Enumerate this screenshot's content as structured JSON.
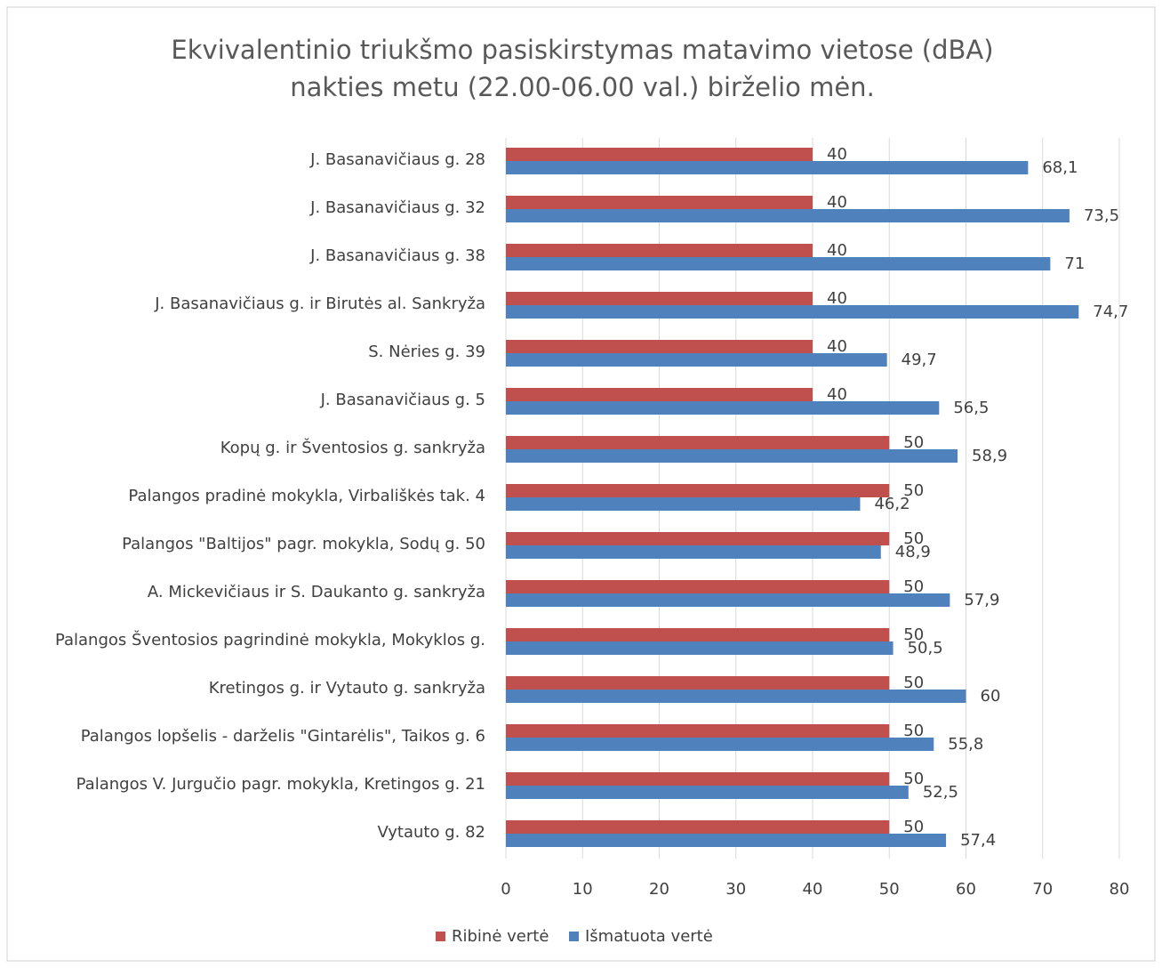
{
  "chart_data": {
    "type": "barh",
    "title": [
      "Ekvivalentinio triukšmo pasiskirstymas matavimo vietose (dBA)",
      "nakties metu (22.00-06.00 val.) birželio mėn."
    ],
    "categories": [
      "J. Basanavičiaus g. 28",
      "J. Basanavičiaus g. 32",
      "J. Basanavičiaus g. 38",
      "J. Basanavičiaus g. ir Birutės al. Sankryža",
      "S. Nėries g. 39",
      "J. Basanavičiaus g. 5",
      "Kopų g. ir Šventosios g. sankryža",
      "Palangos pradinė mokykla, Virbališkės tak. 4",
      "Palangos \"Baltijos\" pagr. mokykla, Sodų g. 50",
      "A. Mickevičiaus ir S. Daukanto g. sankryža",
      "Palangos Šventosios pagrindinė mokykla, Mokyklos g.",
      "Kretingos g. ir Vytauto g. sankryža",
      "Palangos lopšelis - darželis \"Gintarėlis\", Taikos g. 6",
      "Palangos V. Jurgučio pagr. mokykla, Kretingos g. 21",
      "Vytauto g. 82"
    ],
    "series": [
      {
        "name": "Ribinė vertė",
        "color": "#c0504d",
        "values": [
          40,
          40,
          40,
          40,
          40,
          40,
          50,
          50,
          50,
          50,
          50,
          50,
          50,
          50,
          50
        ]
      },
      {
        "name": "Išmatuota vertė",
        "color": "#4f81bd",
        "values": [
          68.1,
          73.5,
          71,
          74.7,
          49.7,
          56.5,
          58.9,
          46.2,
          48.9,
          57.9,
          50.5,
          60,
          55.8,
          52.5,
          57.4
        ],
        "value_labels": [
          "68,1",
          "73,5",
          "71",
          "74,7",
          "49,7",
          "56,5",
          "58,9",
          "46,2",
          "48,9",
          "57,9",
          "50,5",
          "60",
          "55,8",
          "52,5",
          "57,4"
        ]
      }
    ],
    "xlim": [
      0,
      80
    ],
    "xticks": [
      0,
      10,
      20,
      30,
      40,
      50,
      60,
      70,
      80
    ],
    "grid": true,
    "legend": "bottom"
  }
}
